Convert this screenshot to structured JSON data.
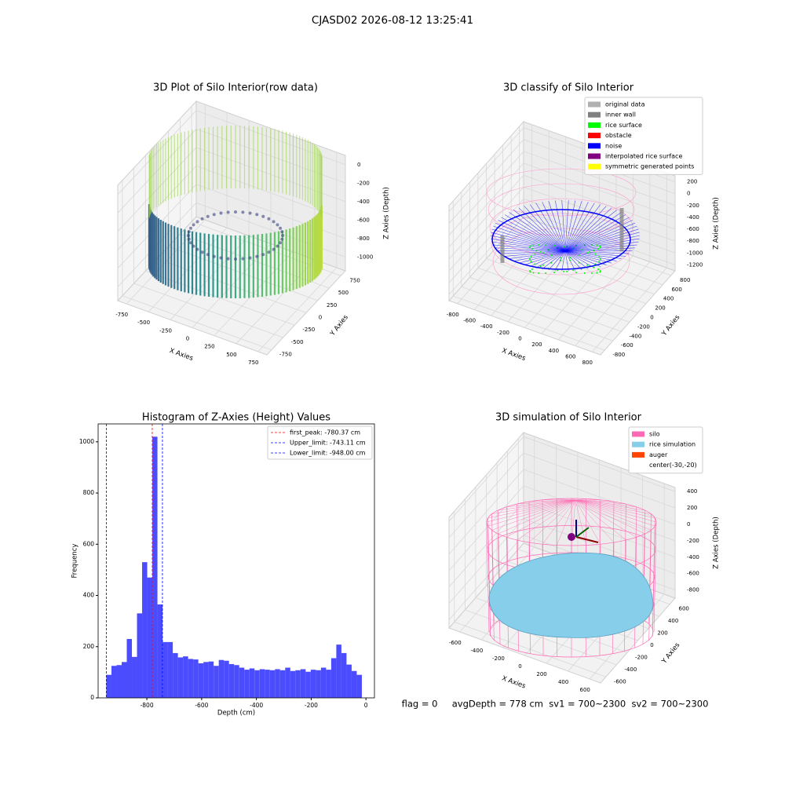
{
  "title": "CJASD02 2026-08-12 13:25:41",
  "footer": "flag = 0     avgDepth = 778 cm  sv1 = 700~2300  sv2 = 700~2300",
  "chart_data": [
    {
      "type": "scatter3d",
      "title": "3D Plot of Silo Interior(row data)",
      "xlabel": "X Axies",
      "ylabel": "Y Axies",
      "zlabel": "Z Axies (Depth)",
      "xlim": [
        -850,
        850
      ],
      "ylim": [
        -850,
        850
      ],
      "zlim": [
        -1150,
        100
      ],
      "xticks": [
        -750,
        -500,
        -250,
        0,
        250,
        500,
        750
      ],
      "yticks": [
        -750,
        -500,
        -250,
        0,
        250,
        500,
        750
      ],
      "zticks": [
        0,
        -200,
        -400,
        -600,
        -800,
        -1000
      ]
    },
    {
      "type": "scatter3d",
      "title": "3D classify of Silo Interior",
      "xlabel": "X Axies",
      "ylabel": "Y Axies",
      "zlabel": "Z Axies (Depth)",
      "xlim": [
        -900,
        900
      ],
      "ylim": [
        -900,
        900
      ],
      "zlim": [
        -1300,
        300
      ],
      "xticks": [
        -800,
        -600,
        -400,
        -200,
        0,
        200,
        400,
        600,
        800
      ],
      "yticks": [
        -800,
        -600,
        -400,
        -200,
        0,
        200,
        400,
        600,
        800
      ],
      "zticks": [
        200,
        0,
        -200,
        -400,
        -600,
        -800,
        -1000,
        -1200
      ],
      "legend": [
        {
          "name": "original data",
          "color": "#b0b0b0"
        },
        {
          "name": "inner wall",
          "color": "#808080"
        },
        {
          "name": "rice surface",
          "color": "#00ff00"
        },
        {
          "name": "obstacle",
          "color": "#ff0000"
        },
        {
          "name": "noise",
          "color": "#0000ff"
        },
        {
          "name": "interpolated rice surface",
          "color": "#800080"
        },
        {
          "name": "symmetric generated points",
          "color": "#ffff00"
        }
      ]
    },
    {
      "type": "histogram",
      "title": "Histogram of Z-Axies (Height) Values",
      "xlabel": "Depth (cm)",
      "ylabel": "Frequency",
      "color": "#4c4cff",
      "bins": [
        -948,
        -929.34,
        -910.68,
        -892.02,
        -873.36,
        -854.7,
        -836.04,
        -817.38,
        -798.72,
        -780.06,
        -761.4,
        -742.74,
        -724.08,
        -705.42,
        -686.76,
        -668.1,
        -649.44,
        -630.78,
        -612.12,
        -593.46,
        -574.8,
        -556.14,
        -537.48,
        -518.82,
        -500.16,
        -481.5,
        -462.84,
        -444.18,
        -425.52,
        -406.86,
        -388.2,
        -369.54,
        -350.88,
        -332.22,
        -313.56,
        -294.9,
        -276.24,
        -257.58,
        -238.92,
        -220.26,
        -201.6,
        -182.94,
        -164.28,
        -145.62,
        -126.96,
        -108.3,
        -89.64,
        -70.98,
        -52.32,
        -33.66,
        -15
      ],
      "values": [
        90,
        125,
        128,
        140,
        230,
        160,
        330,
        530,
        470,
        1020,
        365,
        218,
        218,
        175,
        158,
        162,
        152,
        150,
        135,
        140,
        142,
        125,
        148,
        145,
        132,
        128,
        118,
        110,
        115,
        108,
        112,
        110,
        108,
        112,
        108,
        118,
        105,
        108,
        112,
        102,
        110,
        108,
        118,
        110,
        155,
        208,
        175,
        130,
        105,
        90
      ],
      "xlim": [
        -978,
        31
      ],
      "ylim": [
        0,
        1070
      ],
      "xticks": [
        -800,
        -600,
        -400,
        -200,
        0
      ],
      "yticks": [
        0,
        200,
        400,
        600,
        800,
        1000
      ],
      "vlines": [
        {
          "name": "first_peak: -780.37 cm",
          "value": -780.37,
          "color": "#ff0000"
        },
        {
          "name": "Upper_limit: -743.11 cm",
          "value": -743.11,
          "color": "#0000ff"
        },
        {
          "name": "Lower_limit: -948.00 cm",
          "value": -948.0,
          "color": "#0000ff"
        }
      ]
    },
    {
      "type": "surface3d",
      "title": "3D simulation of Silo Interior",
      "xlabel": "X Axies",
      "ylabel": "Y Axies",
      "zlabel": "Z Axies (Depth)",
      "xlim": [
        -700,
        700
      ],
      "ylim": [
        -700,
        700
      ],
      "zlim": [
        -900,
        450
      ],
      "xticks": [
        -600,
        -400,
        -200,
        0,
        200,
        400,
        600
      ],
      "yticks": [
        -600,
        -400,
        -200,
        0,
        200,
        400,
        600
      ],
      "zticks": [
        400,
        200,
        0,
        -200,
        -400,
        -600,
        -800
      ],
      "legend": [
        {
          "name": "silo",
          "color": "#ff69b4"
        },
        {
          "name": "rice simulation",
          "color": "#87ceeb"
        },
        {
          "name": "auger",
          "color": "#ff4500"
        },
        {
          "name": "center(-30,-20)"
        }
      ]
    }
  ]
}
